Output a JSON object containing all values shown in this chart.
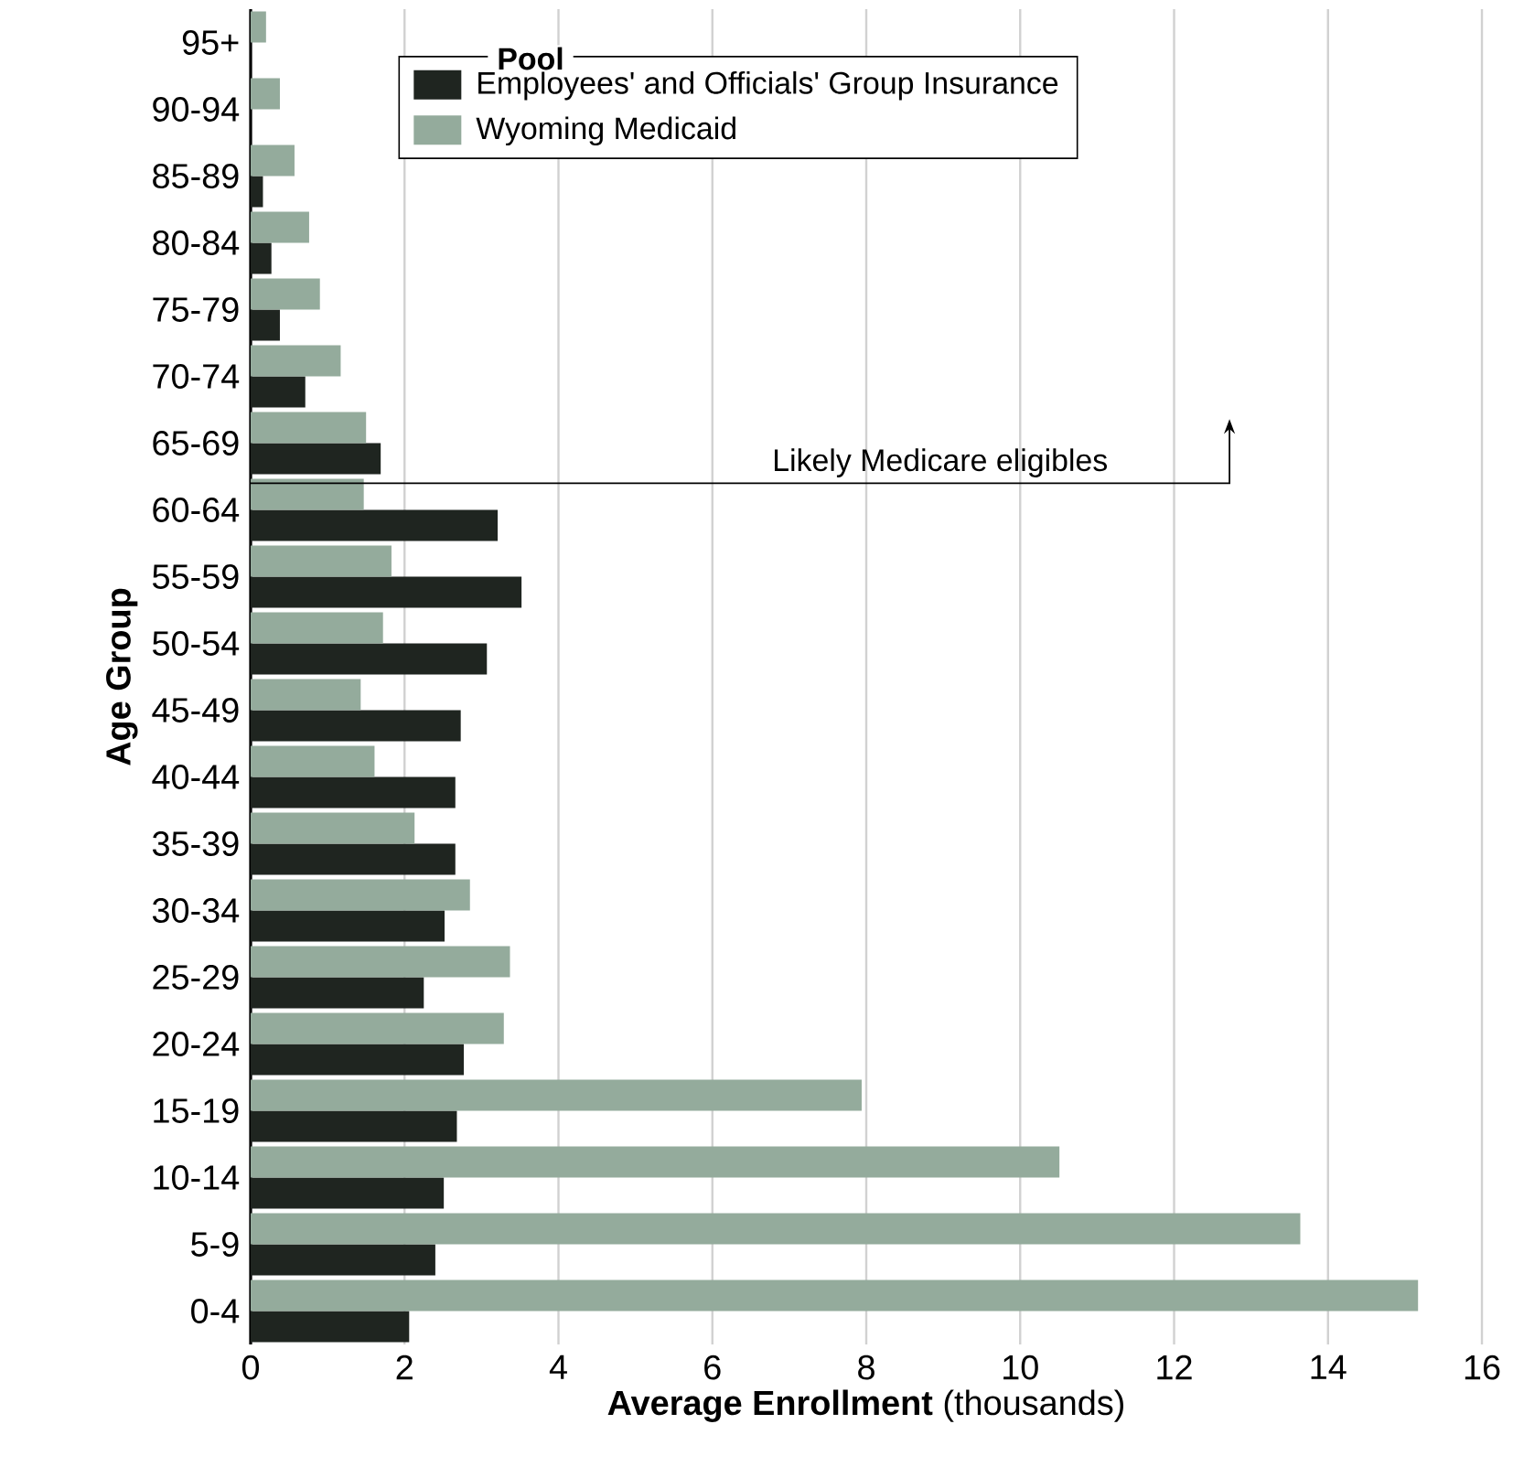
{
  "chart_data": {
    "type": "bar",
    "orientation": "horizontal",
    "xlabel": "**Average Enrollment** (thousands)",
    "ylabel": "Age Group",
    "legend_title": "Pool",
    "legend": "top",
    "grid": "x",
    "categories": [
      "95+",
      "90-94",
      "85-89",
      "80-84",
      "75-79",
      "70-74",
      "65-69",
      "60-64",
      "55-59",
      "50-54",
      "45-49",
      "40-44",
      "35-39",
      "30-34",
      "25-29",
      "20-24",
      "15-19",
      "10-14",
      "5-9",
      "0-4"
    ],
    "series": [
      {
        "name": "Employees' and Officials' Group Insurance",
        "color": "#1f2520",
        "values": [
          null,
          null,
          0.16,
          0.27,
          0.38,
          0.71,
          1.69,
          3.21,
          3.52,
          3.07,
          2.73,
          2.66,
          2.66,
          2.52,
          2.25,
          2.77,
          2.68,
          2.51,
          2.4,
          2.06
        ]
      },
      {
        "name": "Wyoming Medicaid",
        "color": "#94ab9c",
        "values": [
          0.2,
          0.38,
          0.57,
          0.76,
          0.9,
          1.17,
          1.5,
          1.47,
          1.83,
          1.72,
          1.43,
          1.61,
          2.13,
          2.85,
          3.37,
          3.29,
          7.94,
          10.51,
          13.64,
          15.17
        ]
      }
    ],
    "xlim": [
      0,
      16
    ],
    "xticks": [
      0,
      2,
      4,
      6,
      8,
      10,
      12,
      14,
      16
    ],
    "annotations": [
      "Likely Medicare eligibles"
    ]
  }
}
